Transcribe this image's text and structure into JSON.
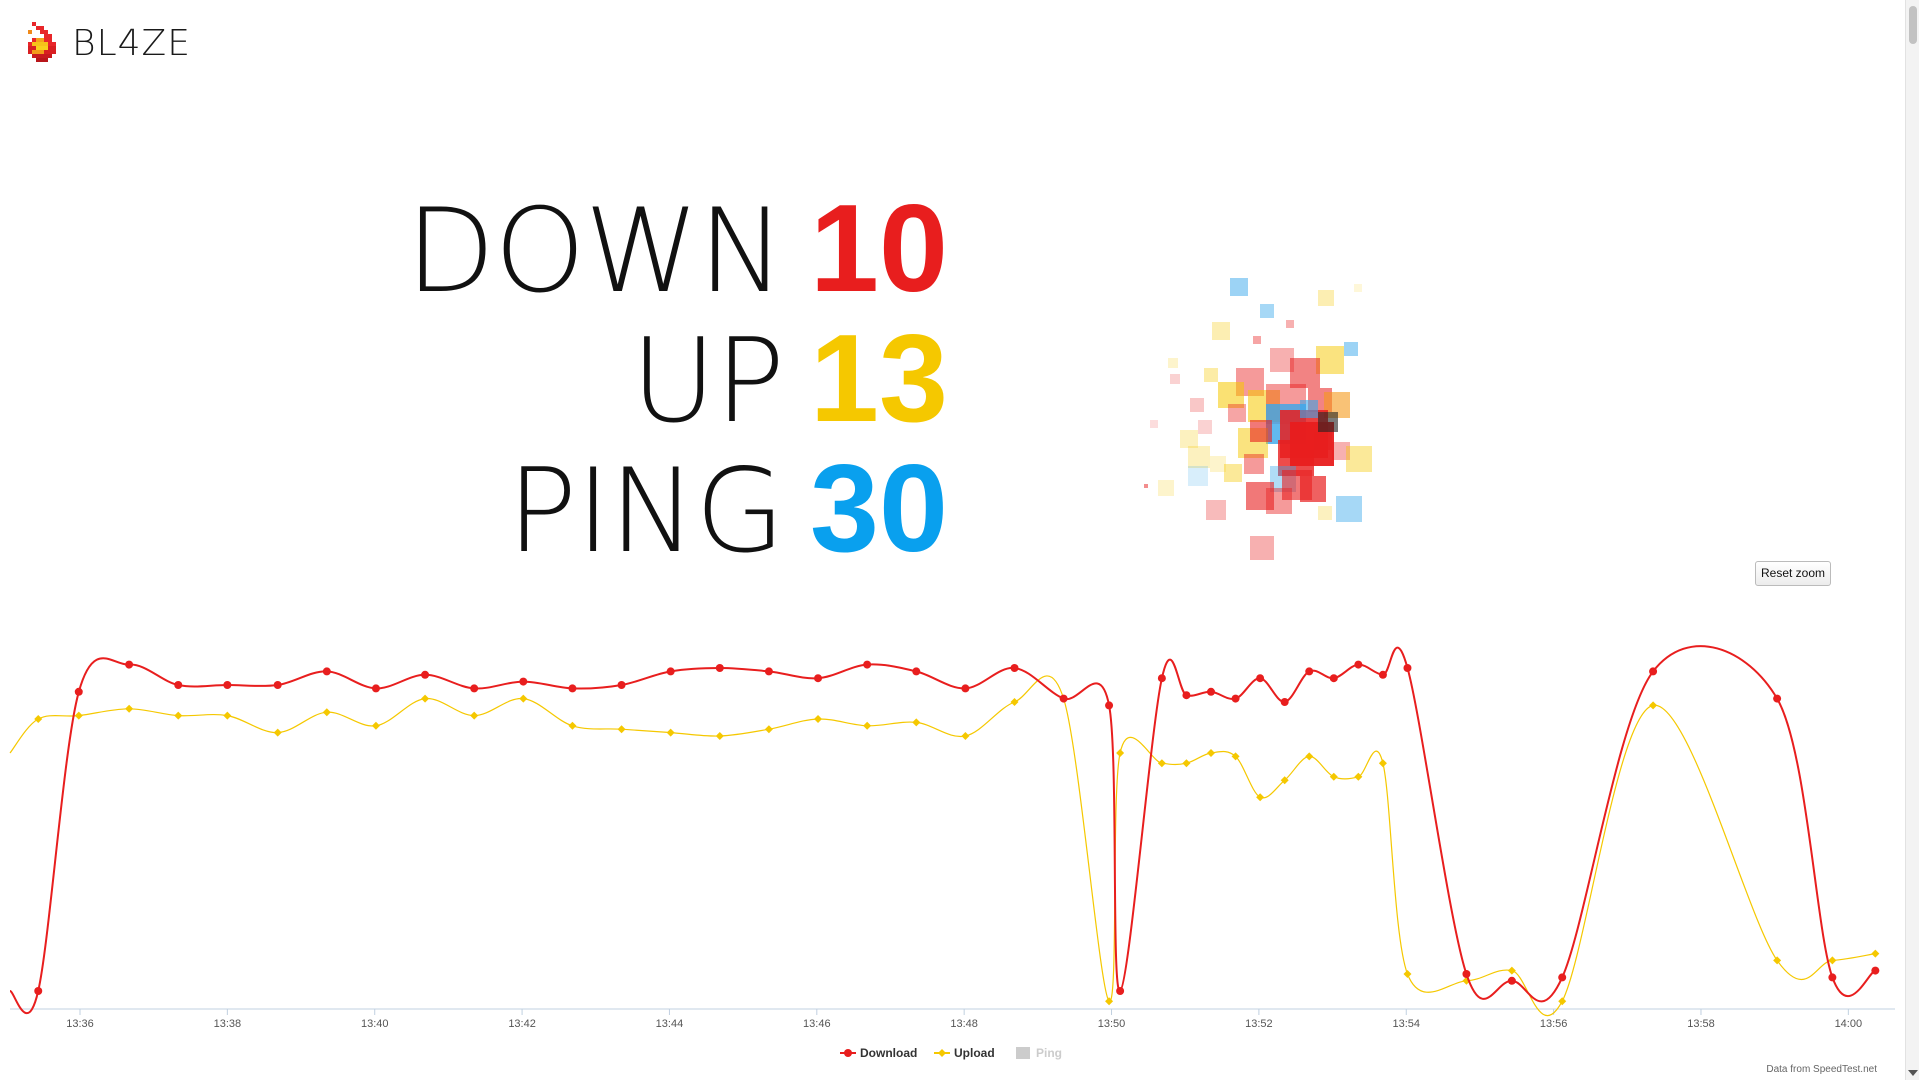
{
  "app": {
    "logo_text": "BL4ZE"
  },
  "stats": [
    {
      "label": "DOWN",
      "value": "10",
      "color": "#e81e1e"
    },
    {
      "label": "UP",
      "value": "13",
      "color": "#f5c800"
    },
    {
      "label": "PING",
      "value": "30",
      "color": "#09a0ee"
    }
  ],
  "reset_zoom_label": "Reset zoom",
  "credit": "Data from SpeedTest.net",
  "legend": [
    {
      "name": "Download",
      "color": "#e81e1e",
      "enabled": true
    },
    {
      "name": "Upload",
      "color": "#f5c800",
      "enabled": true
    },
    {
      "name": "Ping",
      "color": "#cccccc",
      "enabled": false
    }
  ],
  "chart_data": {
    "type": "line",
    "x_ticks": [
      "13:36",
      "13:38",
      "13:40",
      "13:42",
      "13:44",
      "13:46",
      "13:48",
      "13:50",
      "13:52",
      "13:54",
      "13:56",
      "13:58",
      "14:00"
    ],
    "xlim": [
      "13:35:03",
      "14:00:38"
    ],
    "ylim": [
      0,
      100
    ],
    "grid": false,
    "legend_position": "bottom-center",
    "series": [
      {
        "name": "Download",
        "color": "#e81e1e",
        "marker": "circle",
        "x": [
          "13:35:26",
          "13:35:59",
          "13:36:40",
          "13:37:20",
          "13:38:00",
          "13:38:41",
          "13:39:21",
          "13:40:01",
          "13:40:41",
          "13:41:21",
          "13:42:01",
          "13:42:41",
          "13:43:21",
          "13:44:01",
          "13:44:41",
          "13:45:21",
          "13:46:01",
          "13:46:41",
          "13:47:21",
          "13:48:01",
          "13:48:41",
          "13:49:21",
          "13:49:58",
          "13:50:07",
          "13:50:41",
          "13:51:01",
          "13:51:21",
          "13:51:41",
          "13:52:01",
          "13:52:21",
          "13:52:41",
          "13:53:01",
          "13:53:21",
          "13:53:41",
          "13:54:01",
          "13:54:49",
          "13:55:26",
          "13:56:07",
          "13:57:21",
          "13:59:02",
          "13:59:47",
          "14:00:22"
        ],
        "values": [
          5,
          93,
          101,
          95,
          95,
          95,
          99,
          94,
          98,
          94,
          96,
          94,
          95,
          99,
          100,
          99,
          97,
          101,
          99,
          94,
          100,
          91,
          89,
          5,
          97,
          92,
          93,
          91,
          97,
          90,
          99,
          97,
          101,
          98,
          100,
          10,
          8,
          9,
          99,
          91,
          9,
          11
        ]
      },
      {
        "name": "Upload",
        "color": "#f5c800",
        "marker": "diamond",
        "x": [
          "13:35:26",
          "13:35:59",
          "13:36:40",
          "13:37:20",
          "13:38:00",
          "13:38:41",
          "13:39:21",
          "13:40:01",
          "13:40:41",
          "13:41:21",
          "13:42:01",
          "13:42:41",
          "13:43:21",
          "13:44:01",
          "13:44:41",
          "13:45:21",
          "13:46:01",
          "13:46:41",
          "13:47:21",
          "13:48:01",
          "13:48:41",
          "13:49:21",
          "13:49:58",
          "13:50:07",
          "13:50:41",
          "13:51:01",
          "13:51:21",
          "13:51:41",
          "13:52:01",
          "13:52:21",
          "13:52:41",
          "13:53:01",
          "13:53:21",
          "13:53:41",
          "13:54:01",
          "13:54:49",
          "13:55:26",
          "13:56:07",
          "13:57:21",
          "13:59:02",
          "13:59:47",
          "14:00:22"
        ],
        "values": [
          85,
          86,
          88,
          86,
          86,
          81,
          87,
          83,
          91,
          86,
          91,
          83,
          82,
          81,
          80,
          82,
          85,
          83,
          84,
          80,
          90,
          91,
          2,
          75,
          72,
          72,
          75,
          74,
          62,
          67,
          74,
          68,
          68,
          72,
          10,
          8,
          11,
          2,
          89,
          14,
          14,
          16
        ]
      }
    ]
  }
}
